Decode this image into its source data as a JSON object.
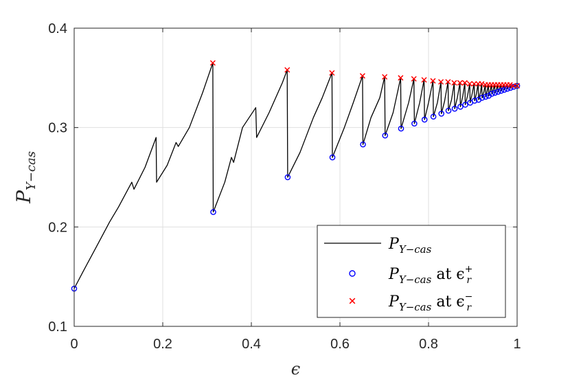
{
  "chart_data": {
    "type": "line",
    "xlabel": "ϵ",
    "ylabel_main": "P",
    "ylabel_sub": "Y−cas",
    "xlim": [
      0,
      1
    ],
    "ylim": [
      0.1,
      0.4
    ],
    "xticks": [
      0,
      0.2,
      0.4,
      0.6,
      0.8,
      1
    ],
    "xtick_labels": [
      "0",
      "0.2",
      "0.4",
      "0.6",
      "0.8",
      "1"
    ],
    "yticks": [
      0.1,
      0.2,
      0.3,
      0.4
    ],
    "ytick_labels": [
      "0.1",
      "0.2",
      "0.3",
      "0.4"
    ],
    "grid": true,
    "legend_position": "bottom-right",
    "colors": {
      "line": "#000000",
      "plus": "#0000ff",
      "minus": "#ff0000",
      "grid": "#dfdfdf",
      "axis": "#262626"
    },
    "series": [
      {
        "name": "P_{Y-cas}",
        "legend": {
          "main": "P",
          "sub": "Y−cas",
          "tail": "",
          "eps_sup": ""
        },
        "style": "line",
        "x": [
          0,
          0.02,
          0.05,
          0.08,
          0.1,
          0.13,
          0.135,
          0.16,
          0.185,
          0.186,
          0.21,
          0.23,
          0.235,
          0.26,
          0.29,
          0.313,
          0.314,
          0.34,
          0.355,
          0.36,
          0.38,
          0.41,
          0.412,
          0.44,
          0.47,
          0.481,
          0.482,
          0.51,
          0.54,
          0.56,
          0.582,
          0.583,
          0.61,
          0.63,
          0.651,
          0.652,
          0.67,
          0.69,
          0.701,
          0.702,
          0.72,
          0.737,
          0.738,
          0.755,
          0.767,
          0.768,
          0.78,
          0.79,
          0.791,
          0.8,
          0.81,
          0.811,
          0.82,
          0.828,
          0.829,
          0.836,
          0.844,
          0.845,
          0.852,
          0.858,
          0.859,
          0.865,
          0.871,
          0.872,
          0.877,
          0.882,
          0.883,
          0.888,
          0.893,
          0.894,
          0.898,
          0.903,
          0.904,
          0.908,
          0.912,
          0.913,
          0.917,
          0.92,
          0.921,
          0.925,
          0.928,
          0.929,
          0.932,
          0.935,
          0.936,
          0.939,
          0.942,
          0.943,
          0.946,
          0.949,
          0.95,
          0.953,
          0.956,
          0.957,
          0.96,
          0.963,
          0.964,
          0.967,
          0.97,
          0.971,
          0.974,
          0.977,
          0.978,
          0.981,
          0.984,
          0.985,
          0.988,
          0.991,
          0.992,
          0.995,
          1.0
        ],
        "y": [
          0.138,
          0.155,
          0.18,
          0.205,
          0.22,
          0.245,
          0.238,
          0.26,
          0.29,
          0.245,
          0.262,
          0.285,
          0.281,
          0.3,
          0.335,
          0.365,
          0.215,
          0.245,
          0.27,
          0.265,
          0.3,
          0.32,
          0.29,
          0.315,
          0.345,
          0.358,
          0.25,
          0.275,
          0.31,
          0.33,
          0.355,
          0.27,
          0.3,
          0.325,
          0.352,
          0.283,
          0.31,
          0.33,
          0.351,
          0.292,
          0.315,
          0.35,
          0.299,
          0.325,
          0.349,
          0.304,
          0.325,
          0.348,
          0.308,
          0.325,
          0.347,
          0.311,
          0.325,
          0.346,
          0.314,
          0.326,
          0.346,
          0.317,
          0.328,
          0.345,
          0.319,
          0.33,
          0.345,
          0.321,
          0.331,
          0.345,
          0.323,
          0.332,
          0.344,
          0.325,
          0.333,
          0.344,
          0.327,
          0.334,
          0.344,
          0.328,
          0.335,
          0.344,
          0.33,
          0.336,
          0.343,
          0.331,
          0.336,
          0.343,
          0.332,
          0.337,
          0.343,
          0.334,
          0.338,
          0.343,
          0.335,
          0.338,
          0.343,
          0.336,
          0.339,
          0.343,
          0.337,
          0.34,
          0.343,
          0.338,
          0.34,
          0.343,
          0.339,
          0.341,
          0.343,
          0.34,
          0.341,
          0.342,
          0.341,
          0.342,
          0.342
        ]
      },
      {
        "name": "P_{Y-cas} at ϵ_r^+",
        "legend": {
          "main": "P",
          "sub": "Y−cas",
          "tail": " at ϵ",
          "eps_sup": "+"
        },
        "style": "circle",
        "x": [
          0,
          0.314,
          0.482,
          0.583,
          0.652,
          0.702,
          0.738,
          0.768,
          0.791,
          0.811,
          0.829,
          0.845,
          0.859,
          0.872,
          0.883,
          0.894,
          0.904,
          0.913,
          0.921,
          0.929,
          0.936,
          0.943,
          0.95,
          0.957,
          0.964,
          0.971,
          0.978,
          0.985,
          0.992,
          1.0
        ],
        "y": [
          0.138,
          0.215,
          0.25,
          0.27,
          0.283,
          0.292,
          0.299,
          0.304,
          0.308,
          0.311,
          0.314,
          0.317,
          0.319,
          0.321,
          0.323,
          0.325,
          0.327,
          0.328,
          0.33,
          0.331,
          0.332,
          0.334,
          0.335,
          0.336,
          0.337,
          0.338,
          0.339,
          0.34,
          0.341,
          0.342
        ]
      },
      {
        "name": "P_{Y-cas} at ϵ_r^-",
        "legend": {
          "main": "P",
          "sub": "Y−cas",
          "tail": " at ϵ",
          "eps_sup": "−"
        },
        "style": "cross",
        "x": [
          0.313,
          0.481,
          0.582,
          0.651,
          0.701,
          0.737,
          0.767,
          0.79,
          0.81,
          0.828,
          0.844,
          0.858,
          0.871,
          0.882,
          0.893,
          0.903,
          0.912,
          0.92,
          0.928,
          0.935,
          0.942,
          0.949,
          0.956,
          0.963,
          0.97,
          0.977,
          0.984,
          0.991,
          1.0
        ],
        "y": [
          0.365,
          0.358,
          0.355,
          0.352,
          0.351,
          0.35,
          0.349,
          0.348,
          0.347,
          0.346,
          0.346,
          0.345,
          0.345,
          0.345,
          0.344,
          0.344,
          0.344,
          0.344,
          0.343,
          0.343,
          0.343,
          0.343,
          0.343,
          0.343,
          0.343,
          0.343,
          0.343,
          0.342,
          0.342
        ]
      }
    ]
  }
}
